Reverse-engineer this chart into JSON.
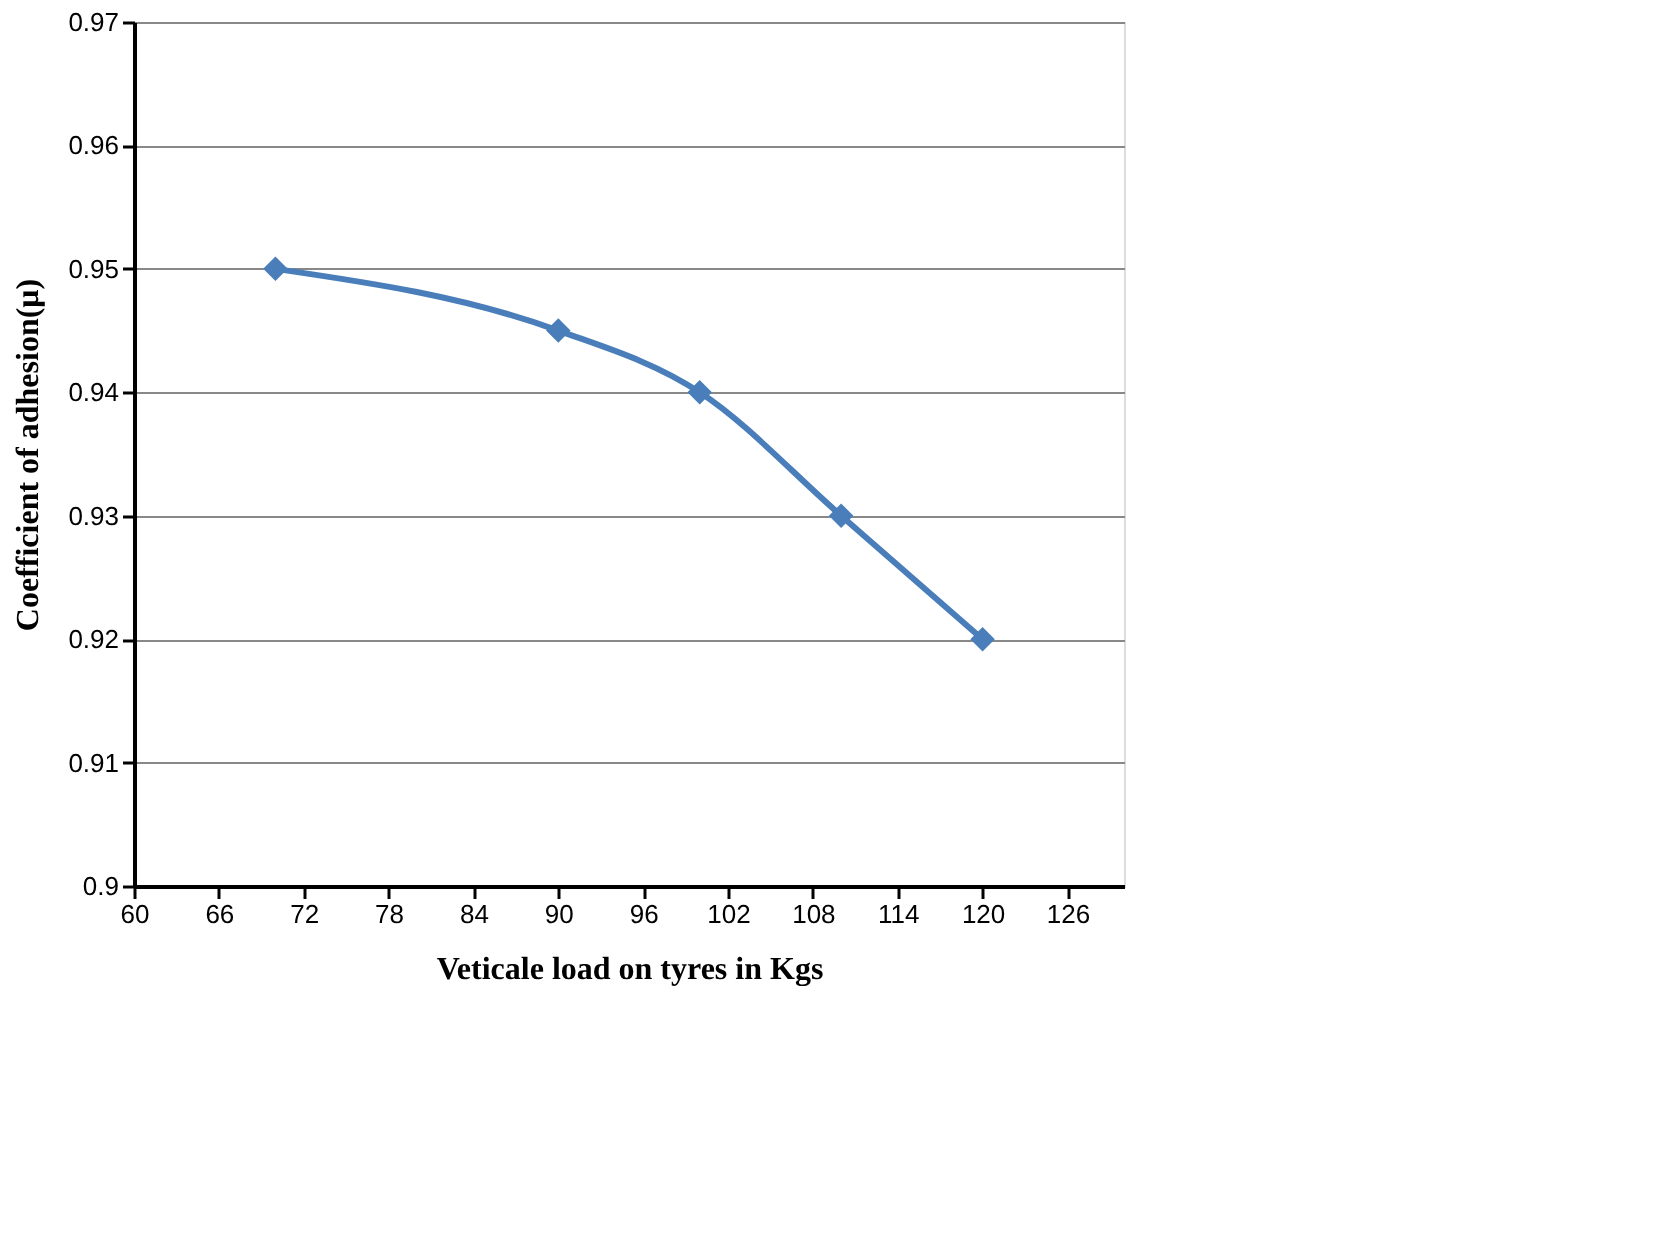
{
  "chart_data": {
    "type": "line",
    "xlabel": "Veticale load on tyres in Kgs",
    "ylabel": "Coefficient of adhesion(μ)",
    "x": [
      70,
      90,
      100,
      110,
      120
    ],
    "series": [
      {
        "color": "#4a7ebb",
        "values": [
          0.95,
          0.945,
          0.94,
          0.93,
          0.92
        ]
      }
    ],
    "xlim": [
      60,
      130
    ],
    "xticks": [
      60,
      66,
      72,
      78,
      84,
      90,
      96,
      102,
      108,
      114,
      120,
      126
    ],
    "ylim": [
      0.9,
      0.97
    ],
    "yticks": [
      0.9,
      0.91,
      0.92,
      0.93,
      0.94,
      0.95,
      0.96,
      0.97
    ],
    "grid": "y",
    "marker": "diamond",
    "line_style": "solid"
  }
}
